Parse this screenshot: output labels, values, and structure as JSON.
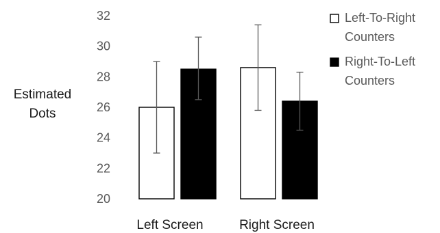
{
  "chart_data": {
    "type": "bar",
    "title": "",
    "xlabel": "",
    "ylabel": [
      "Estimated",
      "Dots"
    ],
    "ylim": [
      20,
      32
    ],
    "yticks": [
      20,
      22,
      24,
      26,
      28,
      30,
      32
    ],
    "grid": false,
    "legend_position": "top-right",
    "categories": [
      "Left Screen",
      "Right Screen"
    ],
    "series": [
      {
        "name": [
          "Left-To-Right",
          "Counters"
        ],
        "fill": "#ffffff",
        "stroke": "#000000",
        "values": [
          26.0,
          28.6
        ],
        "error_low": [
          23.0,
          25.8
        ],
        "error_high": [
          29.0,
          31.4
        ]
      },
      {
        "name": [
          "Right-To-Left",
          "Counters"
        ],
        "fill": "#000000",
        "stroke": "#000000",
        "values": [
          28.5,
          26.4
        ],
        "error_low": [
          26.5,
          24.5
        ],
        "error_high": [
          30.6,
          28.3
        ]
      }
    ],
    "error_bar_color": "#595959"
  }
}
